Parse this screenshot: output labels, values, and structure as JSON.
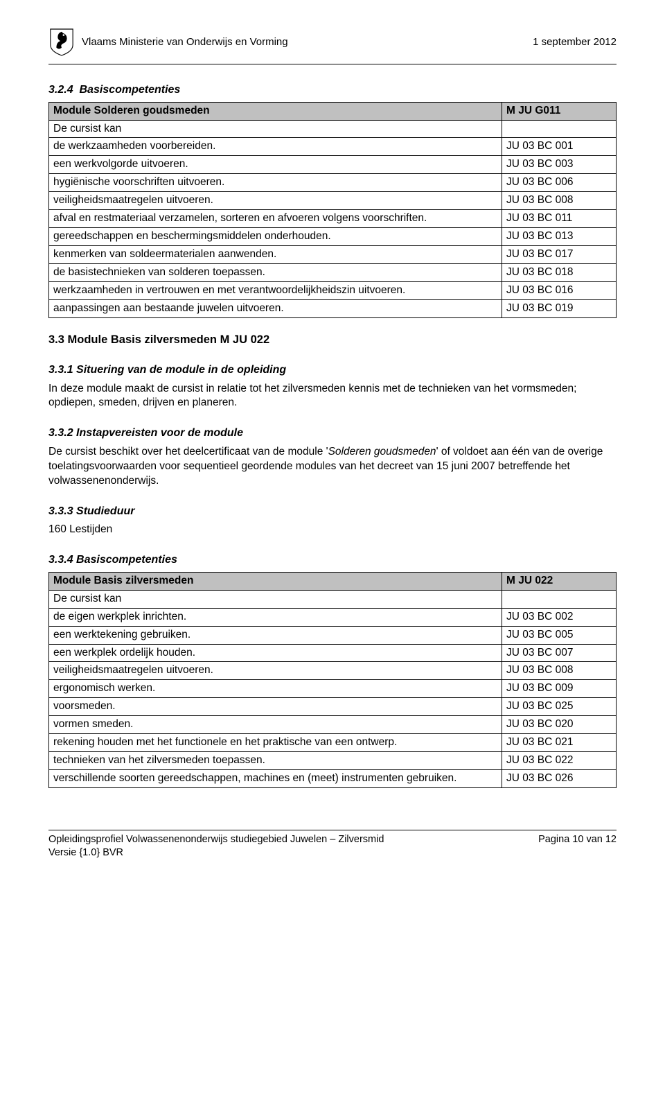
{
  "header": {
    "ministry": "Vlaams Ministerie van Onderwijs en Vorming",
    "date": "1 september 2012"
  },
  "sec324": {
    "num": "3.2.4",
    "title": "Basiscompetenties"
  },
  "table1": {
    "header_left": "Module Solderen goudsmeden",
    "header_right": "M JU G011",
    "intro": "De cursist kan",
    "rows": [
      {
        "l": "de werkzaamheden voorbereiden.",
        "r": "JU 03 BC 001"
      },
      {
        "l": "een werkvolgorde uitvoeren.",
        "r": "JU 03 BC 003"
      },
      {
        "l": "hygiënische voorschriften uitvoeren.",
        "r": "JU 03 BC 006"
      },
      {
        "l": "veiligheidsmaatregelen uitvoeren.",
        "r": "JU 03 BC 008"
      },
      {
        "l": "afval en restmateriaal verzamelen, sorteren en afvoeren volgens voorschriften.",
        "r": "JU 03 BC 011"
      },
      {
        "l": "gereedschappen en beschermingsmiddelen onderhouden.",
        "r": "JU 03 BC 013"
      },
      {
        "l": "kenmerken van soldeermaterialen aanwenden.",
        "r": "JU 03 BC 017"
      },
      {
        "l": "de basistechnieken van solderen toepassen.",
        "r": "JU 03 BC 018"
      },
      {
        "l": "werkzaamheden in vertrouwen en met verantwoordelijkheidszin uitvoeren.",
        "r": "JU 03 BC 016"
      },
      {
        "l": "aanpassingen aan bestaande juwelen uitvoeren.",
        "r": "JU 03 BC 019"
      }
    ]
  },
  "sec33": {
    "heading": "3.3  Module Basis zilversmeden M JU 022"
  },
  "sec331": {
    "heading": "3.3.1  Situering van de module in de opleiding",
    "body": "In deze module maakt de cursist in relatie tot het zilversmeden kennis met de technieken van het vormsmeden; opdiepen, smeden, drijven en planeren."
  },
  "sec332": {
    "heading": "3.3.2  Instapvereisten voor de module",
    "body_pre": "De cursist beschikt over het deelcertificaat van de module '",
    "body_em": "Solderen goudsmeden",
    "body_post": "' of voldoet aan één van de overige toelatingsvoorwaarden voor sequentieel geordende modules van het decreet van 15 juni 2007 betreffende het volwassenenonderwijs."
  },
  "sec333": {
    "heading": "3.3.3  Studieduur",
    "body": "160 Lestijden"
  },
  "sec334": {
    "heading": "3.3.4  Basiscompetenties"
  },
  "table2": {
    "header_left": "Module Basis zilversmeden",
    "header_right": "M JU 022",
    "intro": "De cursist kan",
    "rows": [
      {
        "l": "de eigen werkplek inrichten.",
        "r": "JU 03 BC 002"
      },
      {
        "l": "een werktekening gebruiken.",
        "r": "JU 03 BC 005"
      },
      {
        "l": "een werkplek ordelijk houden.",
        "r": "JU 03 BC 007"
      },
      {
        "l": "veiligheidsmaatregelen uitvoeren.",
        "r": "JU 03 BC 008"
      },
      {
        "l": "ergonomisch werken.",
        "r": "JU 03 BC 009"
      },
      {
        "l": "voorsmeden.",
        "r": "JU 03 BC 025"
      },
      {
        "l": "vormen smeden.",
        "r": "JU 03 BC 020"
      },
      {
        "l": "rekening houden met het functionele en het praktische van een ontwerp.",
        "r": "JU 03 BC 021"
      },
      {
        "l": "technieken van het zilversmeden toepassen.",
        "r": "JU 03 BC 022"
      },
      {
        "l": "verschillende soorten gereedschappen, machines en (meet) instrumenten gebruiken.",
        "r": "JU 03 BC 026"
      }
    ]
  },
  "footer": {
    "line1": "Opleidingsprofiel Volwassenenonderwijs studiegebied Juwelen – Zilversmid",
    "line2": "Versie {1.0} BVR",
    "page": "Pagina 10 van 12"
  }
}
